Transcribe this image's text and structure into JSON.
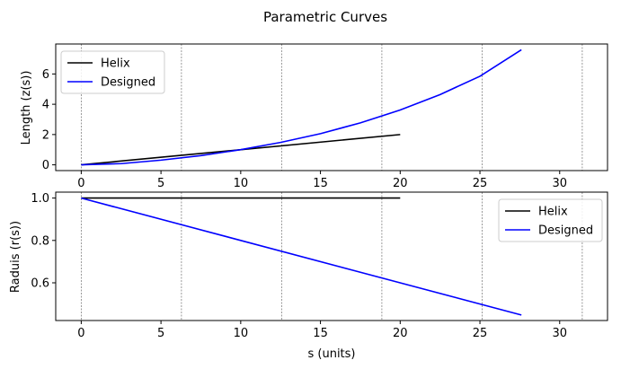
{
  "chart_data": [
    {
      "type": "line",
      "title": "Parametric Curves",
      "xlabel": "",
      "ylabel": "Length (z(s))",
      "xlim": [
        -1.6,
        33.0
      ],
      "ylim": [
        -0.38,
        7.98
      ],
      "xticks": [
        0,
        5,
        10,
        15,
        20,
        25,
        30
      ],
      "yticks": [
        0,
        2,
        4,
        6
      ],
      "vlines": [
        0,
        6.283,
        12.566,
        18.85,
        25.133,
        31.416
      ],
      "legend_position": "top-left",
      "series": [
        {
          "name": "Helix",
          "color": "#000000",
          "x": [
            0,
            20
          ],
          "y": [
            0,
            2
          ]
        },
        {
          "name": "Designed",
          "color": "#0000ff",
          "x": [
            0,
            2.5,
            5,
            7.5,
            10,
            12.5,
            15,
            17.5,
            20,
            22.5,
            25,
            27.6
          ],
          "y": [
            0,
            0.08,
            0.31,
            0.61,
            1.0,
            1.48,
            2.06,
            2.77,
            3.62,
            4.64,
            5.85,
            7.6
          ]
        }
      ]
    },
    {
      "type": "line",
      "title": "",
      "xlabel": "s (units)",
      "ylabel": "Raduis (r(s))",
      "xlim": [
        -1.6,
        33.0
      ],
      "ylim": [
        0.422,
        1.028
      ],
      "xticks": [
        0,
        5,
        10,
        15,
        20,
        25,
        30
      ],
      "yticks": [
        0.6,
        0.8,
        1.0
      ],
      "vlines": [
        0,
        6.283,
        12.566,
        18.85,
        25.133,
        31.416
      ],
      "legend_position": "top-right",
      "series": [
        {
          "name": "Helix",
          "color": "#000000",
          "x": [
            0,
            20
          ],
          "y": [
            1.0,
            1.0
          ]
        },
        {
          "name": "Designed",
          "color": "#0000ff",
          "x": [
            0,
            27.6
          ],
          "y": [
            1.0,
            0.448
          ]
        }
      ]
    }
  ]
}
